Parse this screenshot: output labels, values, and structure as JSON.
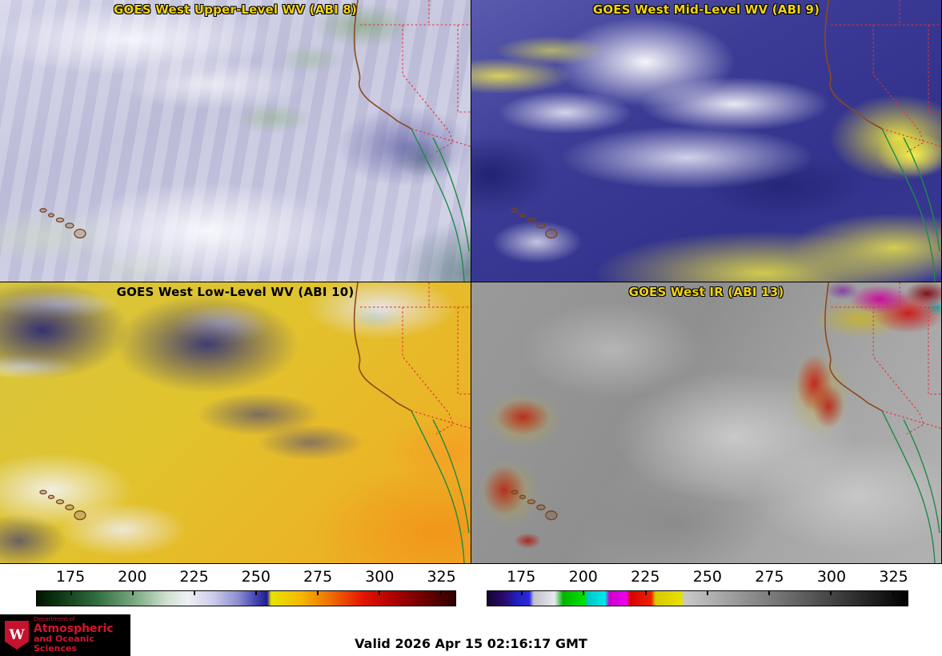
{
  "panels": [
    {
      "title": "GOES West Upper-Level WV (ABI 8)"
    },
    {
      "title": "GOES West Mid-Level WV (ABI 9)"
    },
    {
      "title": "GOES West Low-Level WV (ABI 10)"
    },
    {
      "title": "GOES West IR (ABI 13)"
    }
  ],
  "colorbars": {
    "wv": {
      "ticks": [
        "175",
        "200",
        "225",
        "250",
        "275",
        "300",
        "325"
      ],
      "stops": [
        [
          0,
          "#001400"
        ],
        [
          5,
          "#0b3512"
        ],
        [
          14,
          "#2f6b3c"
        ],
        [
          24,
          "#7fae85"
        ],
        [
          31,
          "#cfe0cf"
        ],
        [
          36,
          "#efeff7"
        ],
        [
          42,
          "#cdcde9"
        ],
        [
          48,
          "#8f8fd0"
        ],
        [
          52,
          "#4a4ab8"
        ],
        [
          55,
          "#1d1d8f"
        ],
        [
          56,
          "#e8e400"
        ],
        [
          63,
          "#f5b800"
        ],
        [
          70,
          "#f07000"
        ],
        [
          78,
          "#e41400"
        ],
        [
          86,
          "#a80000"
        ],
        [
          94,
          "#600000"
        ],
        [
          100,
          "#2e0000"
        ]
      ]
    },
    "ir": {
      "ticks": [
        "175",
        "200",
        "225",
        "250",
        "275",
        "300",
        "325"
      ],
      "stops": [
        [
          0,
          "#14042e"
        ],
        [
          4,
          "#2a0a6e"
        ],
        [
          7,
          "#1f1fbe"
        ],
        [
          10,
          "#2a2ae0"
        ],
        [
          11,
          "#c0c0c8"
        ],
        [
          16,
          "#e8e8ee"
        ],
        [
          18,
          "#00b400"
        ],
        [
          23,
          "#00e000"
        ],
        [
          24,
          "#00c8c8"
        ],
        [
          28,
          "#00e8e8"
        ],
        [
          29,
          "#cc00cc"
        ],
        [
          33,
          "#ee00ee"
        ],
        [
          34,
          "#d80000"
        ],
        [
          39,
          "#ee2200"
        ],
        [
          40,
          "#d8c800"
        ],
        [
          46,
          "#e8e000"
        ],
        [
          47,
          "#c8c8c8"
        ],
        [
          100,
          "#000000"
        ]
      ]
    }
  },
  "footer": {
    "valid_time": "Valid 2026 Apr 15 02:16:17 GMT"
  },
  "logo": {
    "crest_letter": "W",
    "dept_line1": "Department of",
    "dept_line2": "Atmospheric",
    "dept_line3": "and Oceanic Sciences"
  },
  "colors": {
    "title_yellow": "#f2d410",
    "panel3_title": "#000000",
    "state_border_red": "#e63232",
    "coastline_brown": "#8a4a1e",
    "baja_green": "#1f8a46",
    "logo_red": "#d3152f",
    "logo_bg": "#000000"
  }
}
